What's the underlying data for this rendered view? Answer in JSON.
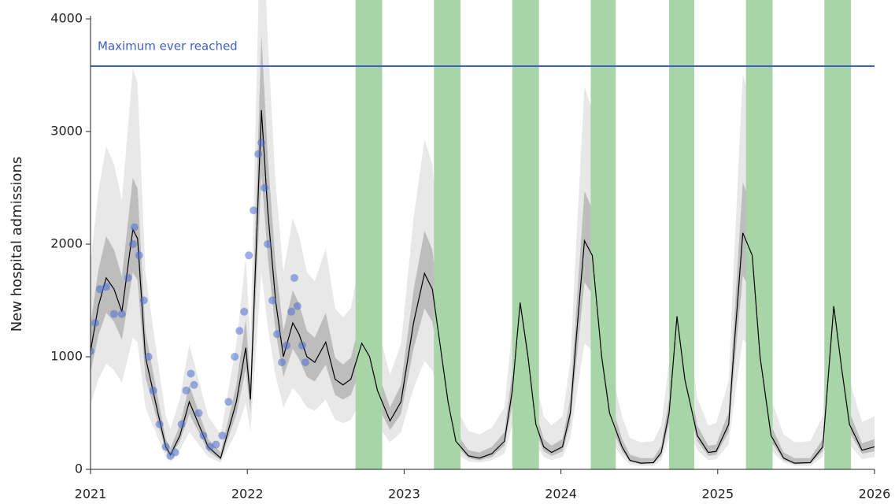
{
  "chart_data": {
    "type": "line",
    "y_label": "New hospital admissions",
    "xlim": [
      2021,
      2026
    ],
    "xticks": [
      2021,
      2022,
      2023,
      2024,
      2025,
      2026
    ],
    "ylim": [
      0,
      4000
    ],
    "yticks": [
      0,
      1000,
      2000,
      3000,
      4000
    ],
    "reference_line": {
      "label": "Maximum ever reached",
      "value": 3580,
      "color": "#3d5fc9"
    },
    "shaded_periods": {
      "color": "#a8d5a8",
      "ranges": [
        [
          2022.69,
          2022.86
        ],
        [
          2023.19,
          2023.36
        ],
        [
          2023.69,
          2023.86
        ],
        [
          2024.19,
          2024.35
        ],
        [
          2024.69,
          2024.85
        ],
        [
          2025.18,
          2025.35
        ],
        [
          2025.68,
          2025.85
        ]
      ]
    },
    "x": [
      2021.0,
      2021.05,
      2021.1,
      2021.15,
      2021.2,
      2021.27,
      2021.3,
      2021.35,
      2021.43,
      2021.48,
      2021.51,
      2021.57,
      2021.63,
      2021.69,
      2021.75,
      2021.83,
      2021.93,
      2021.99,
      2022.02,
      2022.09,
      2022.13,
      2022.18,
      2022.23,
      2022.29,
      2022.33,
      2022.38,
      2022.43,
      2022.5,
      2022.56,
      2022.61,
      2022.66,
      2022.73,
      2022.78,
      2022.83,
      2022.91,
      2022.98,
      2023.06,
      2023.13,
      2023.18,
      2023.23,
      2023.28,
      2023.33,
      2023.41,
      2023.48,
      2023.56,
      2023.64,
      2023.69,
      2023.74,
      2023.79,
      2023.84,
      2023.89,
      2023.94,
      2024.01,
      2024.06,
      2024.1,
      2024.15,
      2024.2,
      2024.26,
      2024.31,
      2024.39,
      2024.44,
      2024.51,
      2024.59,
      2024.64,
      2024.69,
      2024.74,
      2024.79,
      2024.87,
      2024.94,
      2024.99,
      2025.07,
      2025.1,
      2025.16,
      2025.22,
      2025.27,
      2025.34,
      2025.42,
      2025.49,
      2025.59,
      2025.67,
      2025.74,
      2025.79,
      2025.84,
      2025.92,
      2026.0
    ],
    "median": {
      "color": "#000000",
      "values": [
        1050,
        1450,
        1700,
        1600,
        1400,
        2130,
        2050,
        1000,
        500,
        200,
        130,
        300,
        600,
        400,
        200,
        100,
        600,
        1080,
        620,
        3190,
        2300,
        1500,
        1000,
        1300,
        1200,
        1000,
        950,
        1130,
        800,
        750,
        800,
        1120,
        1000,
        700,
        430,
        600,
        1300,
        1740,
        1600,
        1100,
        600,
        250,
        120,
        100,
        140,
        250,
        700,
        1480,
        1000,
        400,
        200,
        150,
        200,
        500,
        1200,
        2030,
        1900,
        1000,
        500,
        200,
        80,
        55,
        60,
        150,
        500,
        1360,
        800,
        300,
        150,
        160,
        400,
        1000,
        2100,
        1900,
        1000,
        300,
        100,
        55,
        60,
        200,
        1450,
        900,
        400,
        170,
        200
      ]
    },
    "inner_band": {
      "color": "#bdbdbd",
      "lower": [
        860,
        1190,
        1390,
        1310,
        1150,
        1750,
        1680,
        820,
        410,
        160,
        110,
        250,
        490,
        330,
        160,
        80,
        490,
        890,
        510,
        2620,
        1890,
        1230,
        820,
        1070,
        980,
        820,
        780,
        930,
        660,
        620,
        660,
        920,
        820,
        570,
        350,
        490,
        1070,
        1430,
        1310,
        900,
        490,
        210,
        100,
        80,
        110,
        210,
        570,
        1210,
        820,
        330,
        160,
        120,
        160,
        410,
        980,
        1660,
        1560,
        820,
        410,
        160,
        70,
        45,
        50,
        120,
        410,
        1120,
        660,
        250,
        120,
        130,
        330,
        820,
        1720,
        1560,
        820,
        250,
        80,
        45,
        50,
        160,
        1190,
        740,
        330,
        140,
        160
      ],
      "upper": [
        1290,
        1770,
        2070,
        1950,
        1710,
        2590,
        2490,
        1230,
        630,
        270,
        190,
        390,
        750,
        510,
        270,
        150,
        750,
        1330,
        770,
        3860,
        2790,
        1830,
        1230,
        1590,
        1470,
        1230,
        1170,
        1390,
        990,
        930,
        990,
        1370,
        1230,
        870,
        550,
        750,
        1590,
        2120,
        1950,
        1350,
        750,
        330,
        170,
        150,
        200,
        330,
        870,
        1810,
        1230,
        510,
        270,
        210,
        270,
        630,
        1470,
        2470,
        2310,
        1230,
        630,
        270,
        130,
        100,
        100,
        210,
        630,
        1660,
        990,
        390,
        210,
        220,
        510,
        1230,
        2550,
        2310,
        1230,
        390,
        150,
        100,
        100,
        270,
        1770,
        1110,
        510,
        230,
        270
      ]
    },
    "outer_band": {
      "color": "#e8e8e8",
      "lower": [
        580,
        800,
        940,
        880,
        770,
        1170,
        1130,
        550,
        280,
        110,
        70,
        170,
        330,
        220,
        110,
        60,
        330,
        590,
        340,
        1750,
        1270,
        830,
        550,
        720,
        660,
        550,
        520,
        620,
        440,
        410,
        440,
        620,
        550,
        390,
        240,
        330,
        720,
        960,
        880,
        610,
        330,
        140,
        70,
        60,
        80,
        140,
        390,
        810,
        550,
        220,
        110,
        80,
        110,
        280,
        660,
        1120,
        1050,
        550,
        280,
        110,
        40,
        30,
        30,
        80,
        280,
        750,
        440,
        170,
        80,
        90,
        220,
        550,
        1160,
        1050,
        550,
        170,
        60,
        30,
        30,
        110,
        800,
        500,
        220,
        90,
        110
      ],
      "upper": [
        1830,
        2470,
        2870,
        2710,
        2390,
        3560,
        3430,
        1750,
        950,
        470,
        360,
        630,
        1110,
        790,
        470,
        310,
        1110,
        1880,
        1140,
        5250,
        3830,
        2550,
        1750,
        2230,
        2070,
        1750,
        1670,
        1960,
        1430,
        1350,
        1430,
        1940,
        1750,
        1270,
        840,
        1110,
        2230,
        2930,
        2710,
        1910,
        1110,
        550,
        340,
        310,
        370,
        550,
        1270,
        2520,
        1750,
        790,
        470,
        390,
        470,
        950,
        2070,
        3400,
        3190,
        1750,
        950,
        470,
        280,
        240,
        250,
        390,
        950,
        2330,
        1430,
        630,
        390,
        410,
        790,
        1750,
        3510,
        3190,
        1750,
        630,
        310,
        240,
        250,
        470,
        2470,
        1590,
        790,
        420,
        470
      ]
    },
    "observed": {
      "color": "#4a6fd0",
      "x": [
        2021.0,
        2021.03,
        2021.06,
        2021.1,
        2021.15,
        2021.2,
        2021.24,
        2021.27,
        2021.28,
        2021.31,
        2021.34,
        2021.37,
        2021.4,
        2021.44,
        2021.48,
        2021.51,
        2021.54,
        2021.58,
        2021.61,
        2021.64,
        2021.66,
        2021.69,
        2021.72,
        2021.76,
        2021.8,
        2021.84,
        2021.88,
        2021.92,
        2021.95,
        2021.98,
        2022.01,
        2022.04,
        2022.07,
        2022.09,
        2022.11,
        2022.13,
        2022.16,
        2022.19,
        2022.22,
        2022.25,
        2022.28,
        2022.3,
        2022.32,
        2022.35,
        2022.37
      ],
      "values": [
        1050,
        1300,
        1600,
        1620,
        1380,
        1380,
        1700,
        2000,
        2150,
        1900,
        1500,
        1000,
        700,
        400,
        200,
        120,
        150,
        400,
        700,
        850,
        750,
        500,
        300,
        200,
        220,
        300,
        600,
        1000,
        1230,
        1400,
        1900,
        2300,
        2800,
        2900,
        2500,
        2000,
        1500,
        1200,
        950,
        1100,
        1400,
        1700,
        1450,
        1100,
        950
      ]
    }
  }
}
